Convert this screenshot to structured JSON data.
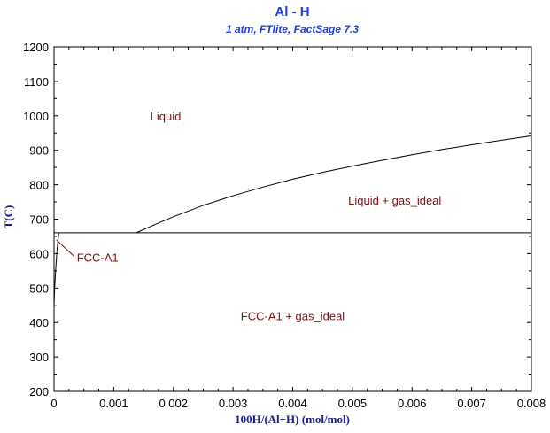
{
  "chart_data": {
    "type": "line",
    "title": "Al - H",
    "subtitle": "1 atm, FTlite, FactSage 7.3",
    "xlabel": "100H/(Al+H) (mol/mol)",
    "ylabel": "T(C)",
    "xlim": [
      0,
      0.008
    ],
    "ylim": [
      200,
      1200
    ],
    "x_ticks": [
      "0",
      "0.001",
      "0.002",
      "0.003",
      "0.004",
      "0.005",
      "0.006",
      "0.007",
      "0.008"
    ],
    "y_ticks": [
      "200",
      "300",
      "400",
      "500",
      "600",
      "700",
      "800",
      "900",
      "1000",
      "1100",
      "1200"
    ],
    "grid": false,
    "series": [
      {
        "points": [
          [
            0.00138,
            660.5
          ],
          [
            0.0017,
            685
          ],
          [
            0.002,
            707
          ],
          [
            0.0025,
            740
          ],
          [
            0.003,
            768
          ],
          [
            0.0035,
            793
          ],
          [
            0.004,
            816
          ],
          [
            0.0045,
            836
          ],
          [
            0.005,
            854
          ],
          [
            0.0055,
            871
          ],
          [
            0.006,
            887
          ],
          [
            0.0065,
            902
          ],
          [
            0.007,
            916
          ],
          [
            0.0075,
            929
          ],
          [
            0.008,
            942
          ]
        ]
      },
      {
        "points": [
          [
            0,
            660.5
          ],
          [
            0.008,
            660.5
          ]
        ]
      },
      {
        "points": [
          [
            0,
            450
          ],
          [
            1e-05,
            500
          ],
          [
            3e-05,
            560
          ],
          [
            5e-05,
            610
          ],
          [
            7e-05,
            645
          ],
          [
            8e-05,
            660.5
          ]
        ]
      }
    ],
    "region_labels": [
      {
        "text": "Liquid",
        "x": 0.00187,
        "y": 1000
      },
      {
        "text": "Liquid + gas_ideal",
        "x": 0.00571,
        "y": 755
      },
      {
        "text": "FCC-A1",
        "x": 0.00073,
        "y": 590
      },
      {
        "text": "FCC-A1 + gas_ideal",
        "x": 0.004,
        "y": 420
      }
    ],
    "annotations": [
      {
        "type": "leader",
        "from": [
          0.00033,
          593
        ],
        "to": [
          4e-05,
          640
        ]
      }
    ],
    "colors": {
      "title": "#1f3fd4",
      "axis_label": "#1a1a8c",
      "region_label": "#7a1212",
      "line": "#000000"
    }
  }
}
